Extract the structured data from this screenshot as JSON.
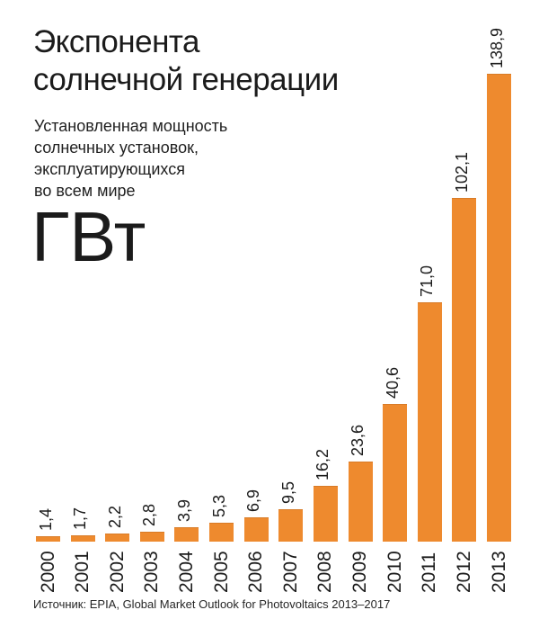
{
  "header": {
    "title": "Экспонента\nсолнечной генерации",
    "subtitle": "Установленная мощность\nсолнечных установок,\nэксплуатирующихся\nво всем мире",
    "unit": "ГВт"
  },
  "chart_data": {
    "type": "bar",
    "title": "Экспонента солнечной генерации",
    "subtitle": "Установленная мощность солнечных установок, эксплуатирующихся во всем мире",
    "unit_ylabel": "ГВт",
    "categories": [
      "2000",
      "2001",
      "2002",
      "2003",
      "2004",
      "2005",
      "2006",
      "2007",
      "2008",
      "2009",
      "2010",
      "2011",
      "2012",
      "2013"
    ],
    "values": [
      1.4,
      1.7,
      2.2,
      2.8,
      3.9,
      5.3,
      6.9,
      9.5,
      16.2,
      23.6,
      40.6,
      71.0,
      102.1,
      138.9
    ],
    "value_labels": [
      "1,4",
      "1,7",
      "2,2",
      "2,8",
      "3,9",
      "5,3",
      "6,9",
      "9,5",
      "16,2",
      "23,6",
      "40,6",
      "71,0",
      "102,1",
      "138,9"
    ],
    "ylim": [
      0,
      140
    ],
    "grid": false,
    "legend": false,
    "label_rotation_deg": -90,
    "bar_color": "#EE8A2E"
  },
  "footer": {
    "source": "Источник: EPIA, Global Market Outlook for Photovoltaics 2013–2017"
  },
  "colors": {
    "bar": "#EE8A2E",
    "bar_edge": "#D87B27",
    "text": "#1B1B1B",
    "background": "#FFFFFF"
  }
}
